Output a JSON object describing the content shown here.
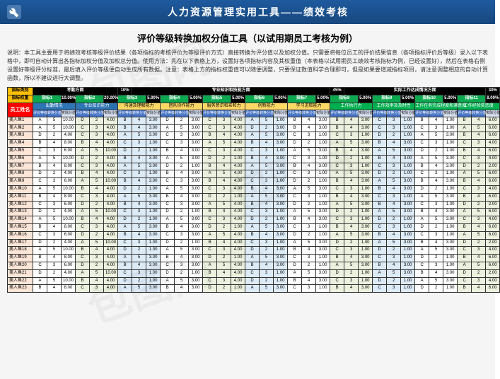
{
  "header": {
    "title": "人力资源管理实用工具——绩效考核",
    "subtitle": "评价等级转换加权分值工具（以试用期员工考核为例）",
    "description": "说明：本工具主要用于将绩效考核等级评价结果（各项指标的考核评价为等级评价方式）直接转换为评分值以及加权分值。只需要将每位员工的评价结果信息（各项指标评价后等级）录入以下表格中，即可自动计算出各指标加权分值及加权总分值。使用方法：先在以下表格上方，设置好各项指标内容及其权重值（本表格以试用期员工绩效考核指标为例，已经设置好），然后在表格右侧设置好等级评分标准，最后填入评价等级便自动生成所有数据。注意：表格上方的指标权重值可以随便调整，只要保证数值科学合理即可，但是如果要增减指标项目，请注意调整相应的自动计算函数，所以不建议进行大调整。"
  },
  "tbl": {
    "catLabel": "指标类别",
    "wtLabel": "指标权重",
    "empH": "员工姓名",
    "cats": [
      {
        "name": "考勤方面",
        "pct": "10%"
      },
      {
        "name": "专业知识和技能方面",
        "pct": "45%"
      },
      {
        "name": "实际工作达成情况方面",
        "pct": "30%"
      }
    ],
    "idx": [
      {
        "n": "指标1",
        "p": "10.00%"
      },
      {
        "n": "指标2",
        "p": "20.00%"
      },
      {
        "n": "指标3",
        "p": "5.00%"
      },
      {
        "n": "指标4",
        "p": "5.00%"
      },
      {
        "n": "指标5",
        "p": "5.00%"
      },
      {
        "n": "指标6",
        "p": "5.00%"
      },
      {
        "n": "指标7",
        "p": "5.00%"
      },
      {
        "n": "指标8",
        "p": "5.00%"
      },
      {
        "n": "指标9",
        "p": "5.00%"
      },
      {
        "n": "指标10",
        "p": "5.00%"
      },
      {
        "n": "指标11",
        "p": "8.00%"
      }
    ],
    "subs": [
      "出勤情况",
      "专业知识能力",
      "沟通及理解能力",
      "团队协作能力",
      "服务意识和亲和力",
      "创新能力",
      "学习进取能力",
      "工作执行力",
      "工作效率及及时性",
      "工作任务完成程度和满意度",
      "工作经验奖惩度"
    ],
    "mini": [
      "评价等级",
      "转换分值",
      "实际分值"
    ],
    "grades": [
      "A",
      "B",
      "C",
      "D"
    ],
    "scores": {
      "A": 5,
      "B": 4,
      "C": 3,
      "D": 2
    },
    "colors": {
      "catBg": "#000000",
      "catFg": "#ffffff",
      "idxBg": "#0ca84f",
      "lblBg": "#ffc000",
      "subB": "#2e75b6",
      "subY": "#ffd966",
      "subG": "#00b050",
      "empH": "#ff0000",
      "empCell": "#fbe5d6",
      "alt1": "#ffffff",
      "alt2": "#ebf1de",
      "alt3": "#ddebf7",
      "border": "#333333"
    },
    "employees": [
      "美人鱼1",
      "美人鱼2",
      "美人鱼3",
      "美人鱼4",
      "美人鱼5",
      "美人鱼6",
      "美人鱼7",
      "美人鱼8",
      "美人鱼9",
      "美人鱼10",
      "美人鱼11",
      "美人鱼12",
      "美人鱼13",
      "美人鱼14",
      "美人鱼15",
      "美人鱼16",
      "美人鱼17",
      "美人鱼18",
      "美人鱼19",
      "美人鱼20",
      "美人鱼21",
      "美人鱼22",
      "美人鱼23"
    ],
    "rows": [
      [
        "A",
        "5",
        "10.00",
        "D",
        "2",
        "4.00",
        "B",
        "4",
        "3.00",
        "D",
        "2",
        "3.00",
        "C",
        "3",
        "4.00",
        "A",
        "5",
        "1.00",
        "B",
        "4",
        "3.00",
        "B",
        "4",
        "3.00",
        "C",
        "3",
        "1.00",
        "B",
        "4",
        "1.00",
        "B",
        "4",
        "6.00"
      ],
      [
        "A",
        "5",
        "10.00",
        "C",
        "3",
        "4.00",
        "B",
        "4",
        "3.00",
        "A",
        "5",
        "3.00",
        "C",
        "3",
        "4.00",
        "D",
        "2",
        "3.00",
        "B",
        "4",
        "3.00",
        "B",
        "4",
        "3.00",
        "C",
        "3",
        "1.00",
        "C",
        "3",
        "1.00",
        "A",
        "5",
        "6.00"
      ],
      [
        "D",
        "2",
        "4.00",
        "C",
        "3",
        "4.00",
        "A",
        "5",
        "3.00",
        "C",
        "3",
        "3.00",
        "B",
        "4",
        "4.00",
        "A",
        "5",
        "3.00",
        "C",
        "3",
        "1.00",
        "C",
        "3",
        "1.00",
        "D",
        "2",
        "1.00",
        "A",
        "5",
        "3.00",
        "B",
        "4",
        "6.00"
      ],
      [
        "B",
        "4",
        "8.00",
        "B",
        "4",
        "4.00",
        "C",
        "3",
        "1.00",
        "C",
        "3",
        "3.00",
        "A",
        "5",
        "4.00",
        "B",
        "4",
        "3.00",
        "D",
        "2",
        "1.00",
        "A",
        "5",
        "3.00",
        "B",
        "4",
        "3.00",
        "C",
        "3",
        "1.00",
        "C",
        "3",
        "4.00"
      ],
      [
        "C",
        "3",
        "6.00",
        "A",
        "5",
        "10.00",
        "D",
        "2",
        "1.00",
        "B",
        "4",
        "3.00",
        "C",
        "3",
        "4.00",
        "C",
        "3",
        "1.00",
        "A",
        "5",
        "3.00",
        "B",
        "4",
        "3.00",
        "A",
        "5",
        "3.00",
        "D",
        "2",
        "1.00",
        "B",
        "4",
        "6.00"
      ],
      [
        "A",
        "5",
        "10.00",
        "D",
        "2",
        "4.00",
        "B",
        "4",
        "3.00",
        "A",
        "5",
        "3.00",
        "D",
        "2",
        "1.00",
        "B",
        "4",
        "3.00",
        "C",
        "3",
        "1.00",
        "D",
        "2",
        "1.00",
        "B",
        "4",
        "3.00",
        "A",
        "5",
        "3.00",
        "C",
        "3",
        "4.00"
      ],
      [
        "B",
        "4",
        "8.00",
        "C",
        "3",
        "4.00",
        "A",
        "5",
        "3.00",
        "D",
        "2",
        "1.00",
        "B",
        "4",
        "4.00",
        "A",
        "5",
        "3.00",
        "B",
        "4",
        "3.00",
        "C",
        "3",
        "1.00",
        "C",
        "3",
        "1.00",
        "B",
        "4",
        "3.00",
        "D",
        "2",
        "2.00"
      ],
      [
        "D",
        "2",
        "4.00",
        "B",
        "4",
        "4.00",
        "C",
        "3",
        "1.00",
        "B",
        "4",
        "3.00",
        "A",
        "5",
        "4.00",
        "D",
        "2",
        "1.00",
        "C",
        "3",
        "1.00",
        "A",
        "5",
        "3.00",
        "D",
        "2",
        "1.00",
        "C",
        "3",
        "1.00",
        "A",
        "5",
        "6.00"
      ],
      [
        "C",
        "3",
        "6.00",
        "A",
        "5",
        "10.00",
        "B",
        "4",
        "3.00",
        "C",
        "3",
        "3.00",
        "B",
        "4",
        "4.00",
        "C",
        "3",
        "1.00",
        "D",
        "2",
        "1.00",
        "B",
        "4",
        "3.00",
        "A",
        "5",
        "3.00",
        "B",
        "4",
        "3.00",
        "B",
        "4",
        "6.00"
      ],
      [
        "A",
        "5",
        "10.00",
        "B",
        "4",
        "4.00",
        "D",
        "2",
        "1.00",
        "A",
        "5",
        "3.00",
        "C",
        "3",
        "4.00",
        "B",
        "4",
        "3.00",
        "A",
        "5",
        "3.00",
        "C",
        "3",
        "1.00",
        "B",
        "4",
        "3.00",
        "D",
        "2",
        "1.00",
        "C",
        "3",
        "4.00"
      ],
      [
        "B",
        "4",
        "8.00",
        "C",
        "3",
        "4.00",
        "A",
        "5",
        "3.00",
        "B",
        "4",
        "3.00",
        "D",
        "2",
        "1.00",
        "A",
        "5",
        "3.00",
        "C",
        "3",
        "1.00",
        "B",
        "4",
        "3.00",
        "C",
        "3",
        "1.00",
        "A",
        "5",
        "3.00",
        "B",
        "4",
        "6.00"
      ],
      [
        "C",
        "3",
        "6.00",
        "D",
        "2",
        "4.00",
        "B",
        "4",
        "3.00",
        "C",
        "3",
        "3.00",
        "A",
        "5",
        "4.00",
        "B",
        "4",
        "3.00",
        "D",
        "2",
        "1.00",
        "A",
        "5",
        "3.00",
        "B",
        "4",
        "3.00",
        "C",
        "3",
        "1.00",
        "D",
        "2",
        "2.00"
      ],
      [
        "D",
        "2",
        "4.00",
        "A",
        "5",
        "10.00",
        "C",
        "3",
        "1.00",
        "D",
        "2",
        "1.00",
        "B",
        "4",
        "4.00",
        "C",
        "3",
        "1.00",
        "A",
        "5",
        "3.00",
        "D",
        "2",
        "1.00",
        "A",
        "5",
        "3.00",
        "B",
        "4",
        "3.00",
        "A",
        "5",
        "6.00"
      ],
      [
        "A",
        "5",
        "10.00",
        "B",
        "4",
        "4.00",
        "D",
        "2",
        "1.00",
        "A",
        "5",
        "3.00",
        "C",
        "3",
        "4.00",
        "D",
        "2",
        "1.00",
        "B",
        "4",
        "3.00",
        "C",
        "3",
        "1.00",
        "D",
        "2",
        "1.00",
        "A",
        "5",
        "3.00",
        "C",
        "3",
        "4.00"
      ],
      [
        "B",
        "4",
        "8.00",
        "C",
        "3",
        "4.00",
        "A",
        "5",
        "3.00",
        "B",
        "4",
        "3.00",
        "D",
        "2",
        "1.00",
        "A",
        "5",
        "3.00",
        "C",
        "3",
        "1.00",
        "B",
        "4",
        "3.00",
        "C",
        "3",
        "1.00",
        "D",
        "2",
        "1.00",
        "B",
        "4",
        "6.00"
      ],
      [
        "C",
        "3",
        "6.00",
        "D",
        "2",
        "4.00",
        "B",
        "4",
        "3.00",
        "C",
        "3",
        "3.00",
        "A",
        "5",
        "4.00",
        "B",
        "4",
        "3.00",
        "D",
        "2",
        "1.00",
        "A",
        "5",
        "3.00",
        "B",
        "4",
        "3.00",
        "C",
        "3",
        "1.00",
        "A",
        "5",
        "6.00"
      ],
      [
        "D",
        "2",
        "4.00",
        "A",
        "5",
        "10.00",
        "C",
        "3",
        "1.00",
        "D",
        "2",
        "1.00",
        "B",
        "4",
        "4.00",
        "C",
        "3",
        "1.00",
        "A",
        "5",
        "3.00",
        "D",
        "2",
        "1.00",
        "A",
        "5",
        "3.00",
        "B",
        "4",
        "3.00",
        "D",
        "2",
        "2.00"
      ],
      [
        "A",
        "5",
        "10.00",
        "B",
        "4",
        "4.00",
        "D",
        "2",
        "1.00",
        "A",
        "5",
        "3.00",
        "C",
        "3",
        "4.00",
        "D",
        "2",
        "1.00",
        "B",
        "4",
        "3.00",
        "C",
        "3",
        "1.00",
        "D",
        "2",
        "1.00",
        "A",
        "5",
        "3.00",
        "C",
        "3",
        "4.00"
      ],
      [
        "B",
        "4",
        "8.00",
        "C",
        "3",
        "4.00",
        "A",
        "5",
        "3.00",
        "B",
        "4",
        "3.00",
        "D",
        "2",
        "1.00",
        "A",
        "5",
        "3.00",
        "C",
        "3",
        "1.00",
        "B",
        "4",
        "3.00",
        "C",
        "3",
        "1.00",
        "D",
        "2",
        "1.00",
        "B",
        "4",
        "6.00"
      ],
      [
        "C",
        "3",
        "6.00",
        "D",
        "2",
        "4.00",
        "B",
        "4",
        "3.00",
        "C",
        "3",
        "3.00",
        "A",
        "5",
        "4.00",
        "B",
        "4",
        "3.00",
        "D",
        "2",
        "1.00",
        "A",
        "5",
        "3.00",
        "B",
        "4",
        "3.00",
        "C",
        "3",
        "1.00",
        "A",
        "5",
        "6.00"
      ],
      [
        "D",
        "2",
        "4.00",
        "A",
        "5",
        "10.00",
        "C",
        "3",
        "1.00",
        "D",
        "2",
        "1.00",
        "B",
        "4",
        "4.00",
        "C",
        "3",
        "1.00",
        "A",
        "5",
        "3.00",
        "D",
        "2",
        "1.00",
        "A",
        "5",
        "3.00",
        "B",
        "4",
        "3.00",
        "D",
        "2",
        "2.00"
      ],
      [
        "A",
        "5",
        "10.00",
        "B",
        "4",
        "4.00",
        "D",
        "2",
        "1.00",
        "A",
        "5",
        "3.00",
        "C",
        "3",
        "4.00",
        "D",
        "2",
        "1.00",
        "B",
        "4",
        "3.00",
        "C",
        "3",
        "1.00",
        "D",
        "2",
        "1.00",
        "A",
        "5",
        "3.00",
        "C",
        "3",
        "4.00"
      ],
      [
        "B",
        "4",
        "8.00",
        "C",
        "3",
        "4.00",
        "A",
        "5",
        "3.00",
        "B",
        "4",
        "3.00",
        "D",
        "2",
        "1.00",
        "A",
        "5",
        "3.00",
        "C",
        "3",
        "1.00",
        "B",
        "4",
        "3.00",
        "C",
        "3",
        "1.00",
        "D",
        "2",
        "1.00",
        "B",
        "4",
        "6.00"
      ]
    ]
  }
}
